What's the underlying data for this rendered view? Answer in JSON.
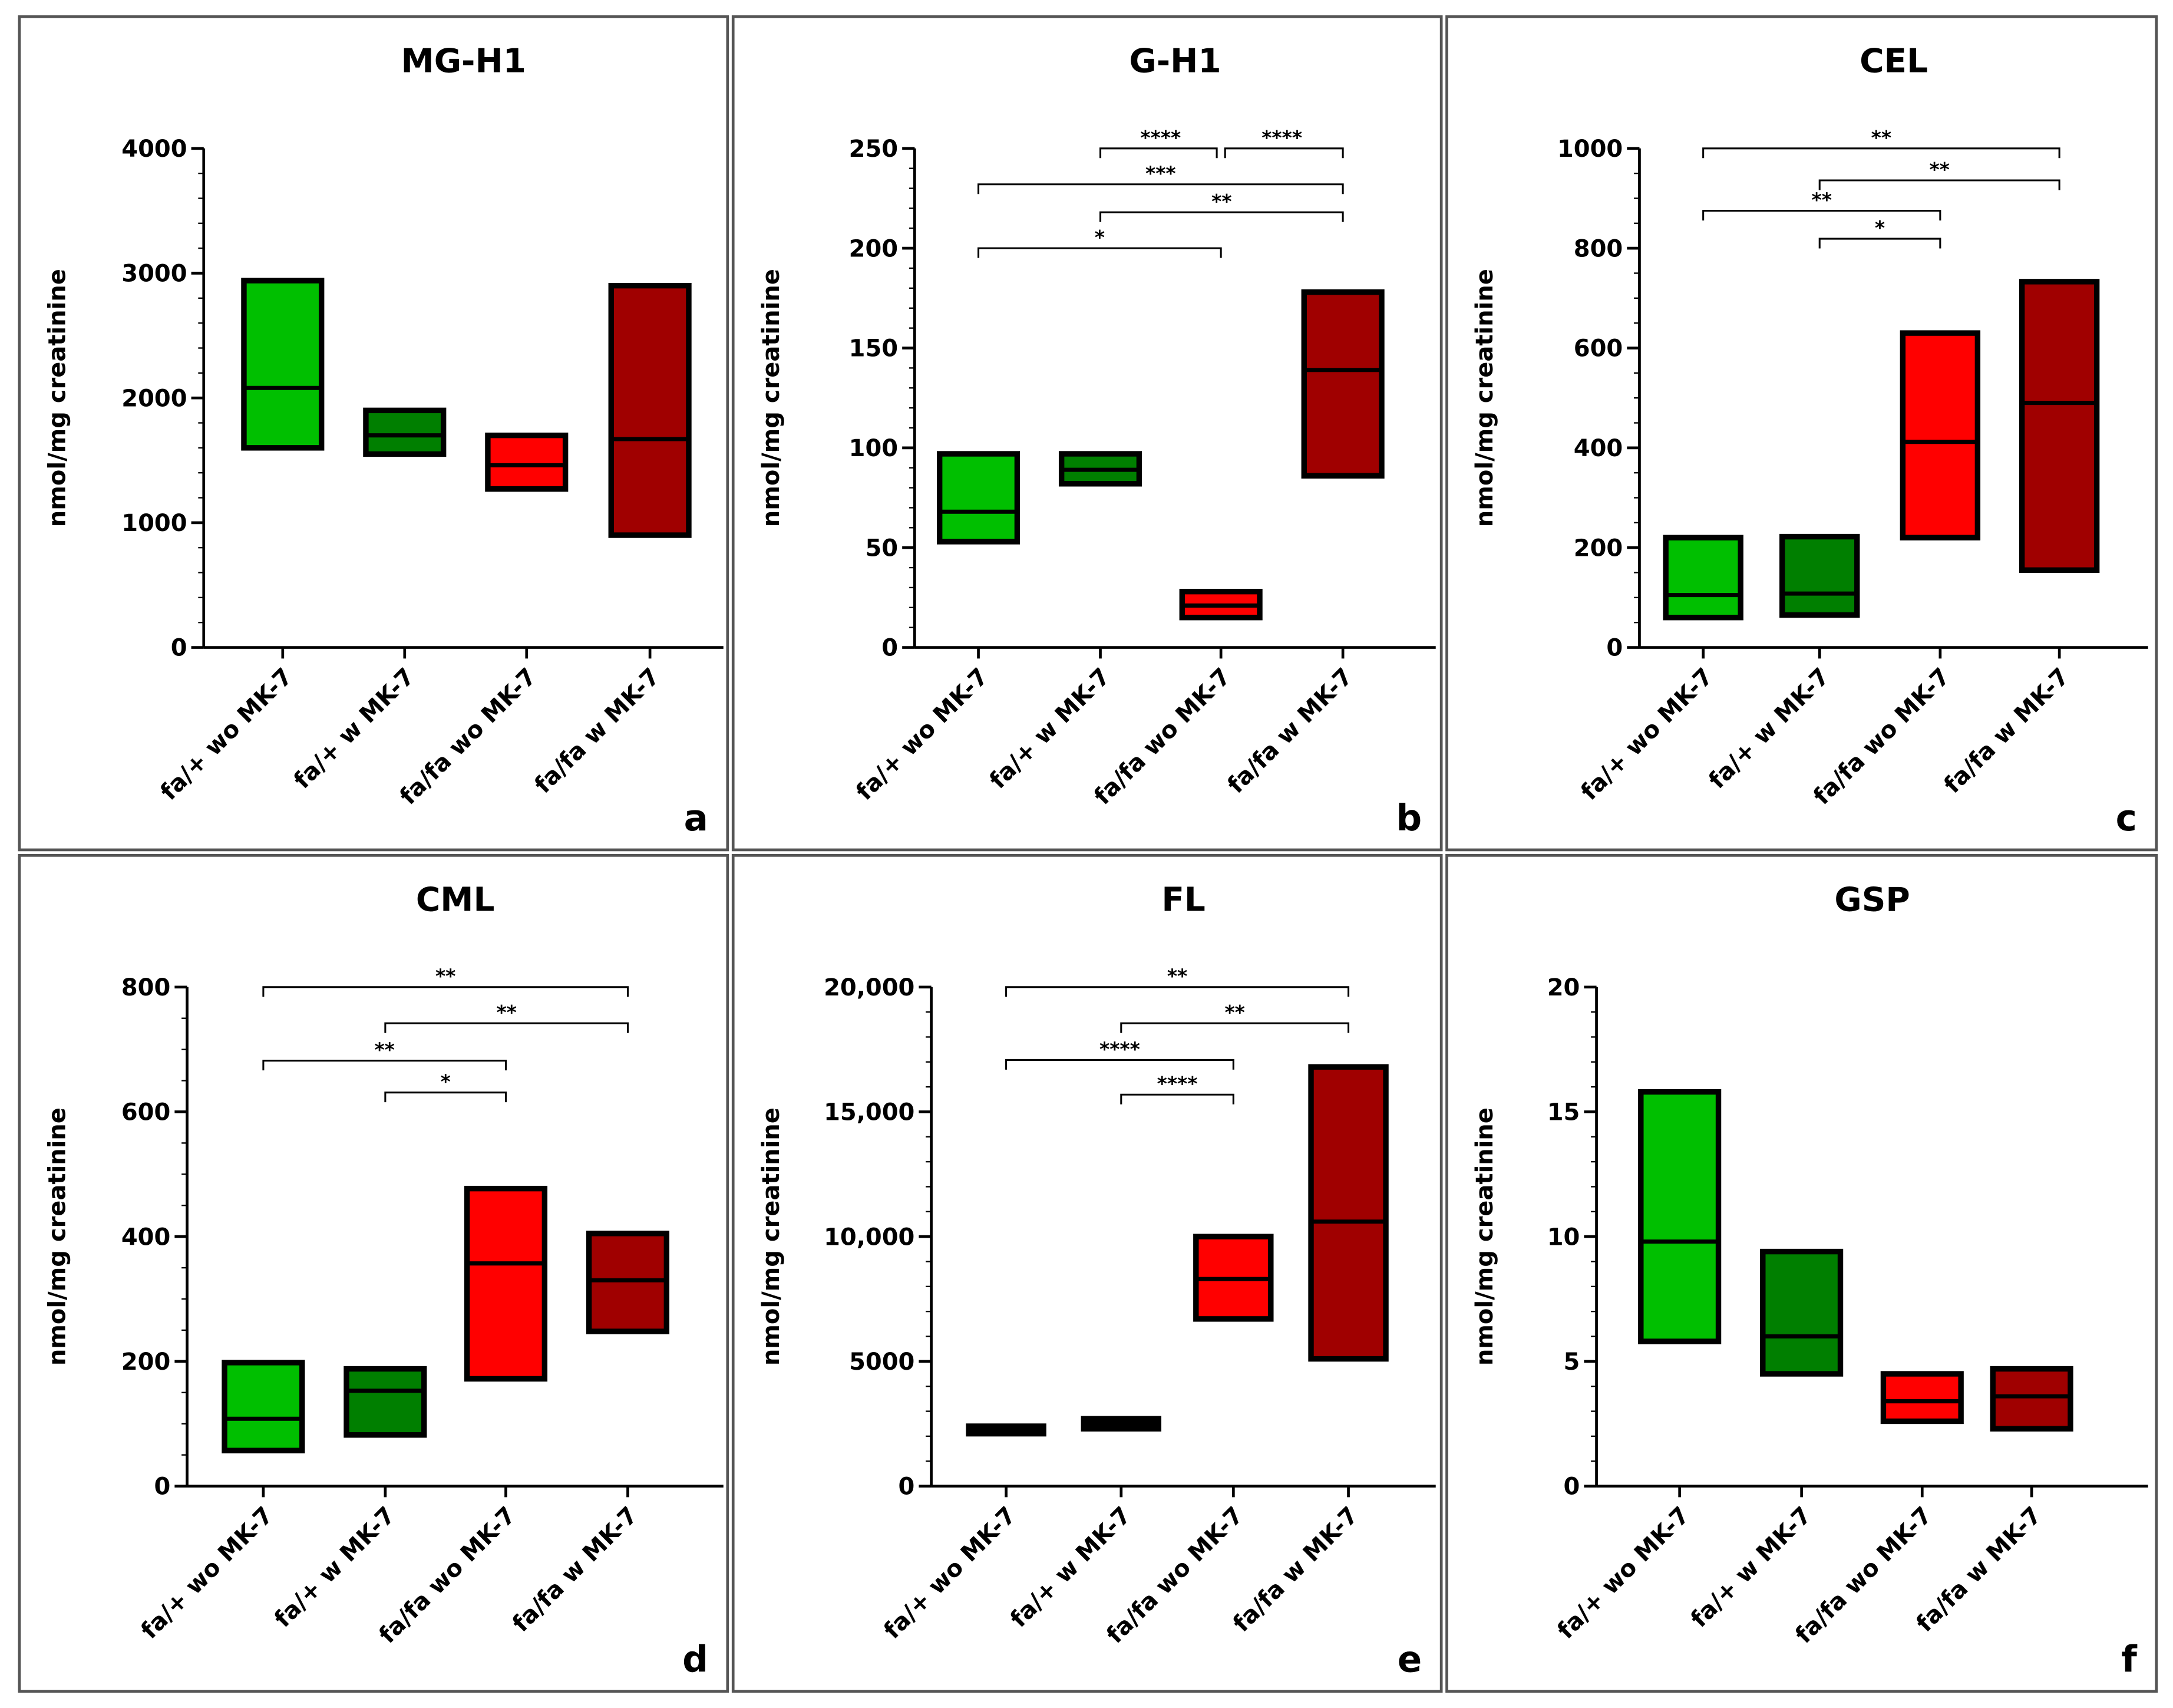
{
  "group_colors": [
    "#00bf00",
    "#007f00",
    "#ff0000",
    "#a00000"
  ],
  "chart_data": [
    {
      "type": "box",
      "panel": "a",
      "title": "MG-H1",
      "ylabel": "nmol/mg creatinine",
      "ylim": [
        0,
        4000
      ],
      "yticks": [
        0,
        1000,
        2000,
        3000,
        4000
      ],
      "ytick_labels": [
        "0",
        "1000",
        "2000",
        "3000",
        "4000"
      ],
      "minor_step": 200,
      "categories": [
        "fa/+ wo MK-7",
        "fa/+ w MK-7",
        "fa/fa wo MK-7",
        "fa/fa w MK-7"
      ],
      "boxes": [
        {
          "min": 1600,
          "median": 2080,
          "max": 2940
        },
        {
          "min": 1550,
          "median": 1700,
          "max": 1900
        },
        {
          "min": 1270,
          "median": 1460,
          "max": 1700
        },
        {
          "min": 900,
          "median": 1670,
          "max": 2900
        }
      ],
      "significance": []
    },
    {
      "type": "box",
      "panel": "b",
      "title": "G-H1",
      "ylabel": "nmol/mg creatinine",
      "ylim": [
        0,
        250
      ],
      "yticks": [
        0,
        50,
        100,
        150,
        200,
        250
      ],
      "ytick_labels": [
        "0",
        "50",
        "100",
        "150",
        "200",
        "250"
      ],
      "minor_step": 10,
      "categories": [
        "fa/+ wo MK-7",
        "fa/+ w MK-7",
        "fa/fa wo MK-7",
        "fa/fa w MK-7"
      ],
      "boxes": [
        {
          "min": 53,
          "median": 68,
          "max": 97
        },
        {
          "min": 82,
          "median": 89,
          "max": 97
        },
        {
          "min": 15,
          "median": 21,
          "max": 28
        },
        {
          "min": 86,
          "median": 139,
          "max": 178
        }
      ],
      "significance": [
        {
          "from": 1,
          "to": 2,
          "y": 250,
          "label": "****"
        },
        {
          "from": 2,
          "to": 3,
          "y": 250,
          "label": "****"
        },
        {
          "from": 0,
          "to": 3,
          "y": 232,
          "label": "***"
        },
        {
          "from": 1,
          "to": 3,
          "y": 218,
          "label": "**"
        },
        {
          "from": 0,
          "to": 2,
          "y": 200,
          "label": "*"
        }
      ]
    },
    {
      "type": "box",
      "panel": "c",
      "title": "CEL",
      "ylabel": "nmol/mg creatinine",
      "ylim": [
        0,
        1000
      ],
      "yticks": [
        0,
        200,
        400,
        600,
        800,
        1000
      ],
      "ytick_labels": [
        "0",
        "200",
        "400",
        "600",
        "800",
        "1000"
      ],
      "minor_step": 50,
      "categories": [
        "fa/+ wo MK-7",
        "fa/+ w MK-7",
        "fa/fa wo MK-7",
        "fa/fa w MK-7"
      ],
      "boxes": [
        {
          "min": 60,
          "median": 105,
          "max": 220
        },
        {
          "min": 65,
          "median": 108,
          "max": 222
        },
        {
          "min": 220,
          "median": 412,
          "max": 630
        },
        {
          "min": 155,
          "median": 490,
          "max": 733
        }
      ],
      "significance": [
        {
          "from": 0,
          "to": 3,
          "y": 1000,
          "label": "**"
        },
        {
          "from": 1,
          "to": 3,
          "y": 936,
          "label": "**"
        },
        {
          "from": 0,
          "to": 2,
          "y": 875,
          "label": "**"
        },
        {
          "from": 1,
          "to": 2,
          "y": 819,
          "label": "*"
        }
      ]
    },
    {
      "type": "box",
      "panel": "d",
      "title": "CML",
      "ylabel": "nmol/mg creatinine",
      "ylim": [
        0,
        800
      ],
      "yticks": [
        0,
        200,
        400,
        600,
        800
      ],
      "ytick_labels": [
        "0",
        "200",
        "400",
        "600",
        "800"
      ],
      "minor_step": 50,
      "categories": [
        "fa/+ wo MK-7",
        "fa/+ w MK-7",
        "fa/fa wo MK-7",
        "fa/fa w MK-7"
      ],
      "boxes": [
        {
          "min": 57,
          "median": 108,
          "max": 198
        },
        {
          "min": 82,
          "median": 153,
          "max": 188
        },
        {
          "min": 172,
          "median": 357,
          "max": 477
        },
        {
          "min": 248,
          "median": 330,
          "max": 405
        }
      ],
      "significance": [
        {
          "from": 0,
          "to": 3,
          "y": 800,
          "label": "**"
        },
        {
          "from": 1,
          "to": 3,
          "y": 742,
          "label": "**"
        },
        {
          "from": 0,
          "to": 2,
          "y": 682,
          "label": "**"
        },
        {
          "from": 1,
          "to": 2,
          "y": 631,
          "label": "*"
        }
      ]
    },
    {
      "type": "box",
      "panel": "e",
      "title": "FL",
      "ylabel": "nmol/mg creatinine",
      "ylim": [
        0,
        20000
      ],
      "yticks": [
        0,
        5000,
        10000,
        15000,
        20000
      ],
      "ytick_labels": [
        "0",
        "5000",
        "10,000",
        "15,000",
        "20,000"
      ],
      "minor_step": 1000,
      "categories": [
        "fa/+ wo MK-7",
        "fa/+ w MK-7",
        "fa/fa wo MK-7",
        "fa/fa w MK-7"
      ],
      "boxes": [
        {
          "min": 2100,
          "median": 2250,
          "max": 2400
        },
        {
          "min": 2300,
          "median": 2500,
          "max": 2700
        },
        {
          "min": 6700,
          "median": 8300,
          "max": 10000
        },
        {
          "min": 5100,
          "median": 10600,
          "max": 16800
        }
      ],
      "significance": [
        {
          "from": 0,
          "to": 3,
          "y": 20000,
          "label": "**"
        },
        {
          "from": 1,
          "to": 3,
          "y": 18550,
          "label": "**"
        },
        {
          "from": 0,
          "to": 2,
          "y": 17080,
          "label": "****"
        },
        {
          "from": 1,
          "to": 2,
          "y": 15690,
          "label": "****"
        }
      ]
    },
    {
      "type": "box",
      "panel": "f",
      "title": "GSP",
      "ylabel": "nmol/mg creatinine",
      "ylim": [
        0,
        20
      ],
      "yticks": [
        0,
        5,
        10,
        15,
        20
      ],
      "ytick_labels": [
        "0",
        "5",
        "10",
        "15",
        "20"
      ],
      "minor_step": 1,
      "categories": [
        "fa/+ wo MK-7",
        "fa/+ w MK-7",
        "fa/fa wo MK-7",
        "fa/fa w MK-7"
      ],
      "boxes": [
        {
          "min": 5.8,
          "median": 9.8,
          "max": 15.8
        },
        {
          "min": 4.5,
          "median": 6.0,
          "max": 9.4
        },
        {
          "min": 2.6,
          "median": 3.4,
          "max": 4.5
        },
        {
          "min": 2.3,
          "median": 3.6,
          "max": 4.7
        }
      ],
      "significance": []
    }
  ]
}
